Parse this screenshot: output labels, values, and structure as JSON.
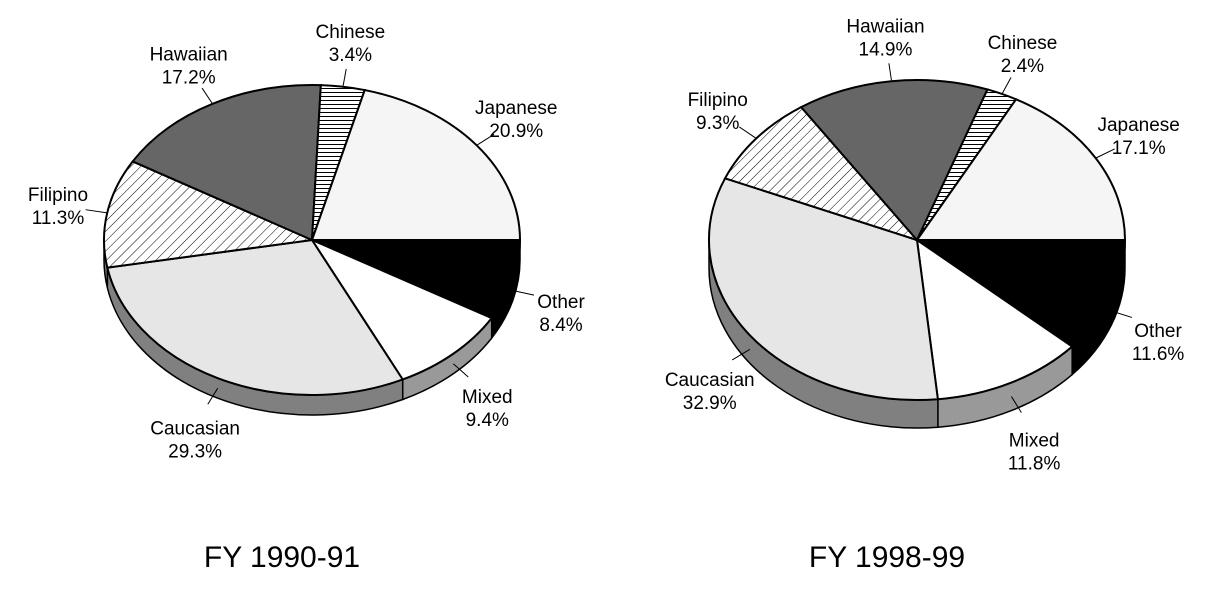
{
  "chart_data": [
    {
      "type": "pie",
      "title": "FY 1990-91",
      "categories": [
        "Other",
        "Mixed",
        "Caucasian",
        "Filipino",
        "Hawaiian",
        "Chinese",
        "Japanese"
      ],
      "values": [
        8.4,
        9.4,
        29.3,
        11.3,
        17.2,
        3.4,
        20.9
      ],
      "value_labels": [
        "8.4%",
        "9.4%",
        "29.3%",
        "11.3%",
        "17.2%",
        "3.4%",
        "20.9%"
      ],
      "colors": [
        "#000000",
        "#ffffff",
        "#e6e6e6",
        "diagonal-hatch",
        "#666666",
        "horizontal-hatch",
        "#f5f5f5"
      ]
    },
    {
      "type": "pie",
      "title": "FY 1998-99",
      "categories": [
        "Other",
        "Mixed",
        "Caucasian",
        "Filipino",
        "Hawaiian",
        "Chinese",
        "Japanese"
      ],
      "values": [
        11.6,
        11.8,
        32.9,
        9.3,
        14.9,
        2.4,
        17.1
      ],
      "value_labels": [
        "11.6%",
        "11.8%",
        "32.9%",
        "9.3%",
        "14.9%",
        "2.4%",
        "17.1%"
      ],
      "colors": [
        "#000000",
        "#ffffff",
        "#e6e6e6",
        "diagonal-hatch",
        "#666666",
        "horizontal-hatch",
        "#f5f5f5"
      ]
    }
  ]
}
